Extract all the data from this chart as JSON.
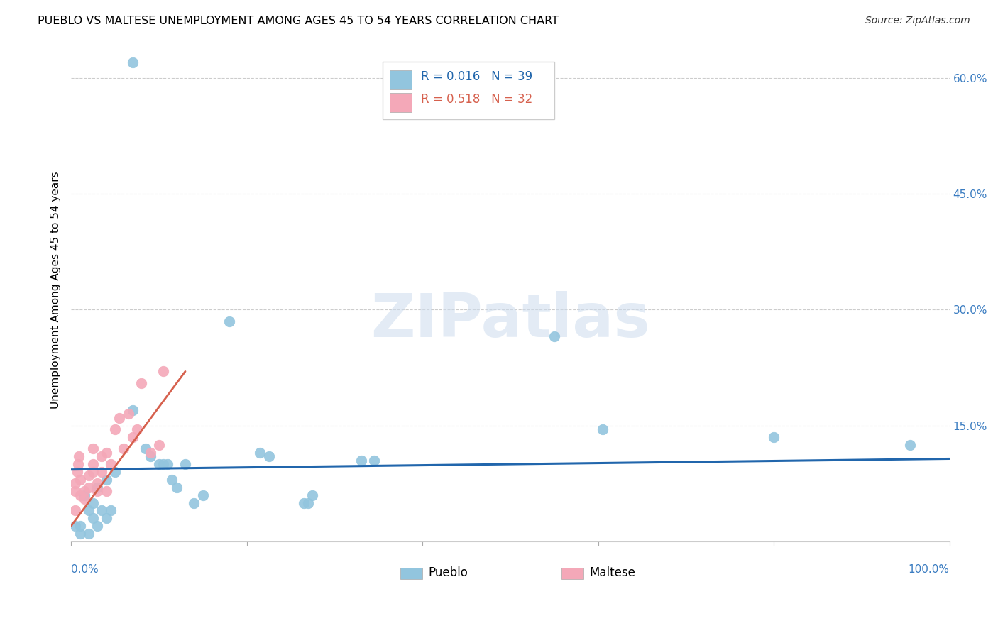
{
  "title": "PUEBLO VS MALTESE UNEMPLOYMENT AMONG AGES 45 TO 54 YEARS CORRELATION CHART",
  "source": "Source: ZipAtlas.com",
  "ylabel": "Unemployment Among Ages 45 to 54 years",
  "yticks": [
    0.0,
    0.15,
    0.3,
    0.45,
    0.6
  ],
  "ytick_labels": [
    "",
    "15.0%",
    "30.0%",
    "45.0%",
    "60.0%"
  ],
  "xlim": [
    0.0,
    1.0
  ],
  "ylim": [
    0.0,
    0.65
  ],
  "pueblo_R": "0.016",
  "pueblo_N": "39",
  "maltese_R": "0.518",
  "maltese_N": "32",
  "pueblo_color": "#92c5de",
  "maltese_color": "#f4a8b8",
  "pueblo_trend_color": "#2166ac",
  "maltese_trend_color": "#d6604d",
  "watermark_text": "ZIPatlas",
  "pueblo_x": [
    0.07,
    0.005,
    0.01,
    0.01,
    0.015,
    0.02,
    0.02,
    0.025,
    0.025,
    0.03,
    0.03,
    0.035,
    0.04,
    0.04,
    0.045,
    0.05,
    0.07,
    0.085,
    0.09,
    0.1,
    0.105,
    0.11,
    0.115,
    0.12,
    0.13,
    0.14,
    0.15,
    0.18,
    0.215,
    0.225,
    0.265,
    0.27,
    0.275,
    0.33,
    0.345,
    0.55,
    0.605,
    0.8,
    0.955
  ],
  "pueblo_y": [
    0.62,
    0.02,
    0.01,
    0.02,
    0.06,
    0.01,
    0.04,
    0.03,
    0.05,
    0.02,
    0.07,
    0.04,
    0.03,
    0.08,
    0.04,
    0.09,
    0.17,
    0.12,
    0.11,
    0.1,
    0.1,
    0.1,
    0.08,
    0.07,
    0.1,
    0.05,
    0.06,
    0.285,
    0.115,
    0.11,
    0.05,
    0.05,
    0.06,
    0.105,
    0.105,
    0.265,
    0.145,
    0.135,
    0.125
  ],
  "maltese_x": [
    0.005,
    0.005,
    0.005,
    0.007,
    0.008,
    0.009,
    0.01,
    0.01,
    0.015,
    0.015,
    0.02,
    0.02,
    0.025,
    0.025,
    0.025,
    0.03,
    0.03,
    0.035,
    0.035,
    0.04,
    0.04,
    0.045,
    0.05,
    0.055,
    0.06,
    0.065,
    0.07,
    0.075,
    0.08,
    0.09,
    0.1,
    0.105
  ],
  "maltese_y": [
    0.04,
    0.065,
    0.075,
    0.09,
    0.1,
    0.11,
    0.06,
    0.08,
    0.055,
    0.065,
    0.07,
    0.085,
    0.09,
    0.1,
    0.12,
    0.065,
    0.075,
    0.09,
    0.11,
    0.065,
    0.115,
    0.1,
    0.145,
    0.16,
    0.12,
    0.165,
    0.135,
    0.145,
    0.205,
    0.115,
    0.125,
    0.22
  ],
  "pueblo_trend_y_start": 0.093,
  "pueblo_trend_y_end": 0.107,
  "maltese_trend_x_start": 0.0,
  "maltese_trend_y_start": 0.02,
  "maltese_trend_x_end": 0.13,
  "maltese_trend_y_end": 0.22
}
